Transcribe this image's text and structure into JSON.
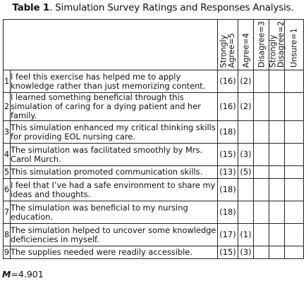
{
  "caption": {
    "label": "Table 1",
    "text": ". Simulation Survey Ratings and Responses Analysis."
  },
  "headers": [
    "Strongly\nAgree=5",
    "Agree=4",
    "Disagree=3",
    "Strongly\nDisagree=2",
    "Unsure=1"
  ],
  "rows": [
    {
      "num": "1",
      "statement": "I feel this exercise has helped me to apply knowledge rather than just memorizing content.",
      "values": [
        "(16)",
        "(2)",
        "",
        "",
        ""
      ]
    },
    {
      "num": "2",
      "statement": "I learned something beneficial through this simulation of caring for a dying patient and her family.",
      "values": [
        "(16)",
        "(2)",
        "",
        "",
        ""
      ]
    },
    {
      "num": "3",
      "statement": "This simulation enhanced my critical thinking skills for providing EOL nursing care.",
      "values": [
        "(18)",
        "",
        "",
        "",
        ""
      ]
    },
    {
      "num": "4",
      "statement": "The simulation was facilitated smoothly by Mrs. Carol Murch.",
      "values": [
        "(15)",
        "(3)",
        "",
        "",
        ""
      ]
    },
    {
      "num": "5",
      "statement": "This simulation promoted communication skills.",
      "values": [
        "(13)",
        "(5)",
        "",
        "",
        ""
      ]
    },
    {
      "num": "6",
      "statement": "I feel that I’ve had a safe environment to share my ideas and thoughts.",
      "values": [
        "(18)",
        "",
        "",
        "",
        ""
      ]
    },
    {
      "num": "7",
      "statement": "The simulation was beneficial to my nursing education.",
      "values": [
        "(18)",
        "",
        "",
        "",
        ""
      ]
    },
    {
      "num": "8",
      "statement": "The simulation helped to uncover some knowledge deficiencies in myself.",
      "values": [
        "(17)",
        "(1)",
        "",
        "",
        ""
      ]
    },
    {
      "num": "9",
      "statement": "The supplies needed were readily accessible.",
      "values": [
        "(15)",
        "(3)",
        "",
        "",
        ""
      ]
    }
  ],
  "mean": {
    "symbol": "M",
    "text": "=4.901"
  }
}
